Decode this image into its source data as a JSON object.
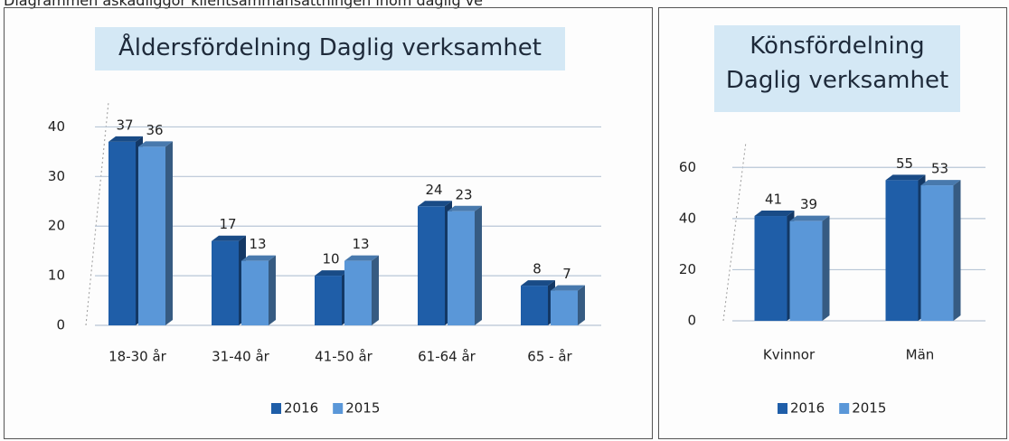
{
  "caption": "Diagrammen åskådliggör klientsammansättningen inom daglig ve",
  "chart_data": [
    {
      "type": "bar",
      "title": "Åldersfördelning Daglig verksamhet",
      "categories": [
        "18-30 år",
        "31-40 år",
        "41-50 år",
        "61-64 år",
        "65 - år"
      ],
      "series": [
        {
          "name": "2016",
          "color": "#1f5ea8",
          "values": [
            37,
            17,
            10,
            24,
            8
          ]
        },
        {
          "name": "2015",
          "color": "#5a97d8",
          "values": [
            36,
            13,
            13,
            23,
            7
          ]
        }
      ],
      "ylim": [
        0,
        45
      ],
      "yticks": [
        0,
        10,
        20,
        30,
        40
      ],
      "grid": true,
      "legend": "bottom"
    },
    {
      "type": "bar",
      "title": "Könsfördelning Daglig verksamhet",
      "categories": [
        "Kvinnor",
        "Män"
      ],
      "series": [
        {
          "name": "2016",
          "color": "#1f5ea8",
          "values": [
            41,
            55
          ]
        },
        {
          "name": "2015",
          "color": "#5a97d8",
          "values": [
            39,
            53
          ]
        }
      ],
      "ylim": [
        0,
        70
      ],
      "yticks": [
        0,
        20,
        40,
        60
      ],
      "grid": true,
      "legend": "bottom"
    }
  ]
}
